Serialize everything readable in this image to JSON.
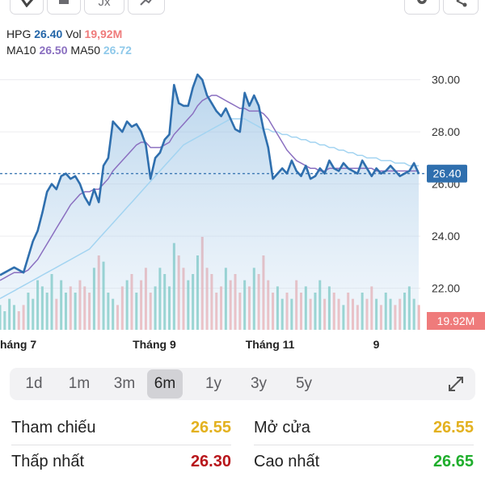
{
  "legend": {
    "sym": "HPG",
    "price": "26.40",
    "vol_label": "Vol",
    "vol": "19,92M",
    "ma10_label": "MA10",
    "ma10": "26.50",
    "ma50_label": "MA50",
    "ma50": "26.72"
  },
  "toolbar": {
    "fx_label": "Jx",
    "buttons": [
      "hand-icon",
      "chart-type-icon",
      "fx-icon",
      "indicator-icon",
      "gear-icon",
      "share-icon"
    ]
  },
  "chart_data": {
    "type": "area",
    "ylim": [
      20.9,
      31.2
    ],
    "y_ticks": [
      "30.00",
      "28.00",
      "26.00",
      "24.00",
      "22.00"
    ],
    "y_tick_values": [
      30,
      28,
      26,
      24,
      22
    ],
    "x_tick_labels": [
      "háng 7",
      "Tháng 9",
      "Tháng 11",
      "9"
    ],
    "x_tick_index": [
      0,
      33,
      57,
      80
    ],
    "last_price_label": "26.40",
    "last_price": 26.4,
    "volume_label": "19.92M",
    "price": [
      22.5,
      22.6,
      22.7,
      22.8,
      22.7,
      22.6,
      23.2,
      23.8,
      24.2,
      24.9,
      25.7,
      26.0,
      25.8,
      26.3,
      26.4,
      26.2,
      26.3,
      26.0,
      25.5,
      25.2,
      25.8,
      25.3,
      26.7,
      27.0,
      28.4,
      28.2,
      28.0,
      28.4,
      28.2,
      28.3,
      28.0,
      27.5,
      26.2,
      27.0,
      27.2,
      27.7,
      27.9,
      29.8,
      29.1,
      29.0,
      29.0,
      29.7,
      30.2,
      30.0,
      29.4,
      29.1,
      28.8,
      28.6,
      28.9,
      28.5,
      28.1,
      28.0,
      29.5,
      29.0,
      29.4,
      29.0,
      28.1,
      27.4,
      26.2,
      26.4,
      26.6,
      26.4,
      26.9,
      26.5,
      26.3,
      26.7,
      26.2,
      26.3,
      26.6,
      26.4,
      26.9,
      26.6,
      26.5,
      26.8,
      26.6,
      26.5,
      26.4,
      26.9,
      26.6,
      26.3,
      26.6,
      26.4,
      26.5,
      26.7,
      26.5,
      26.3,
      26.4,
      26.5,
      26.8,
      26.4
    ],
    "ma10": [
      22.3,
      22.4,
      22.5,
      22.6,
      22.6,
      22.6,
      22.7,
      22.9,
      23.1,
      23.4,
      23.7,
      24.0,
      24.3,
      24.6,
      24.9,
      25.2,
      25.4,
      25.6,
      25.7,
      25.7,
      25.8,
      25.8,
      26.0,
      26.2,
      26.5,
      26.7,
      26.9,
      27.1,
      27.3,
      27.5,
      27.6,
      27.6,
      27.4,
      27.4,
      27.4,
      27.5,
      27.6,
      27.9,
      28.1,
      28.3,
      28.5,
      28.7,
      29.0,
      29.2,
      29.3,
      29.4,
      29.4,
      29.3,
      29.2,
      29.1,
      29.0,
      28.9,
      28.9,
      28.8,
      28.8,
      28.8,
      28.7,
      28.5,
      28.2,
      27.9,
      27.6,
      27.3,
      27.1,
      26.9,
      26.8,
      26.7,
      26.6,
      26.6,
      26.5,
      26.5,
      26.6,
      26.6,
      26.6,
      26.6,
      26.6,
      26.6,
      26.6,
      26.6,
      26.6,
      26.6,
      26.5,
      26.5,
      26.5,
      26.5,
      26.5,
      26.5,
      26.5,
      26.5,
      26.5,
      26.5
    ],
    "ma50": [
      21.6,
      21.7,
      21.8,
      21.9,
      22.0,
      22.1,
      22.2,
      22.3,
      22.4,
      22.5,
      22.6,
      22.7,
      22.8,
      22.9,
      23.0,
      23.1,
      23.2,
      23.3,
      23.4,
      23.5,
      23.7,
      23.9,
      24.1,
      24.3,
      24.5,
      24.7,
      24.9,
      25.1,
      25.3,
      25.5,
      25.7,
      25.9,
      26.1,
      26.3,
      26.5,
      26.7,
      26.9,
      27.1,
      27.3,
      27.5,
      27.6,
      27.7,
      27.8,
      27.9,
      28.0,
      28.1,
      28.2,
      28.3,
      28.4,
      28.5,
      28.5,
      28.5,
      28.5,
      28.4,
      28.3,
      28.2,
      28.1,
      28.1,
      28.0,
      28.0,
      27.9,
      27.9,
      27.8,
      27.8,
      27.7,
      27.7,
      27.6,
      27.6,
      27.5,
      27.5,
      27.4,
      27.4,
      27.3,
      27.3,
      27.2,
      27.2,
      27.1,
      27.1,
      27.0,
      27.0,
      27.0,
      26.9,
      26.9,
      26.9,
      26.8,
      26.8,
      26.8,
      26.7,
      26.7,
      26.7
    ],
    "volume": [
      4,
      3,
      5,
      4,
      3,
      4,
      6,
      5,
      8,
      7,
      6,
      9,
      5,
      8,
      6,
      7,
      6,
      8,
      7,
      6,
      10,
      12,
      11,
      6,
      5,
      4,
      7,
      8,
      9,
      6,
      8,
      10,
      6,
      7,
      10,
      9,
      7,
      14,
      12,
      10,
      8,
      9,
      12,
      15,
      10,
      9,
      6,
      7,
      10,
      8,
      9,
      6,
      8,
      7,
      10,
      9,
      12,
      8,
      6,
      7,
      5,
      6,
      5,
      8,
      6,
      7,
      5,
      6,
      8,
      5,
      7,
      6,
      5,
      4,
      6,
      5,
      4,
      6,
      5,
      7,
      5,
      4,
      6,
      5,
      4,
      5,
      6,
      7,
      5,
      4
    ]
  },
  "ranges": [
    "1d",
    "1m",
    "3m",
    "6m",
    "1y",
    "3y",
    "5y"
  ],
  "active_range": "6m",
  "stats": {
    "ref_label": "Tham chiếu",
    "ref_value": "26.55",
    "open_label": "Mở cửa",
    "open_value": "26.55",
    "low_label": "Thấp nhất",
    "low_value": "26.30",
    "high_label": "Cao nhất",
    "high_value": "26.65"
  },
  "colors": {
    "price_line": "#2f6fae",
    "ma10": "#8a6fc0",
    "ma50": "#9fd2f0",
    "vol_up": "#62c2b5",
    "vol_down": "#f2a0a0",
    "badge": "#2f6fae",
    "ref": "#e3b11f",
    "low": "#b8161b",
    "high": "#1fae2c"
  }
}
